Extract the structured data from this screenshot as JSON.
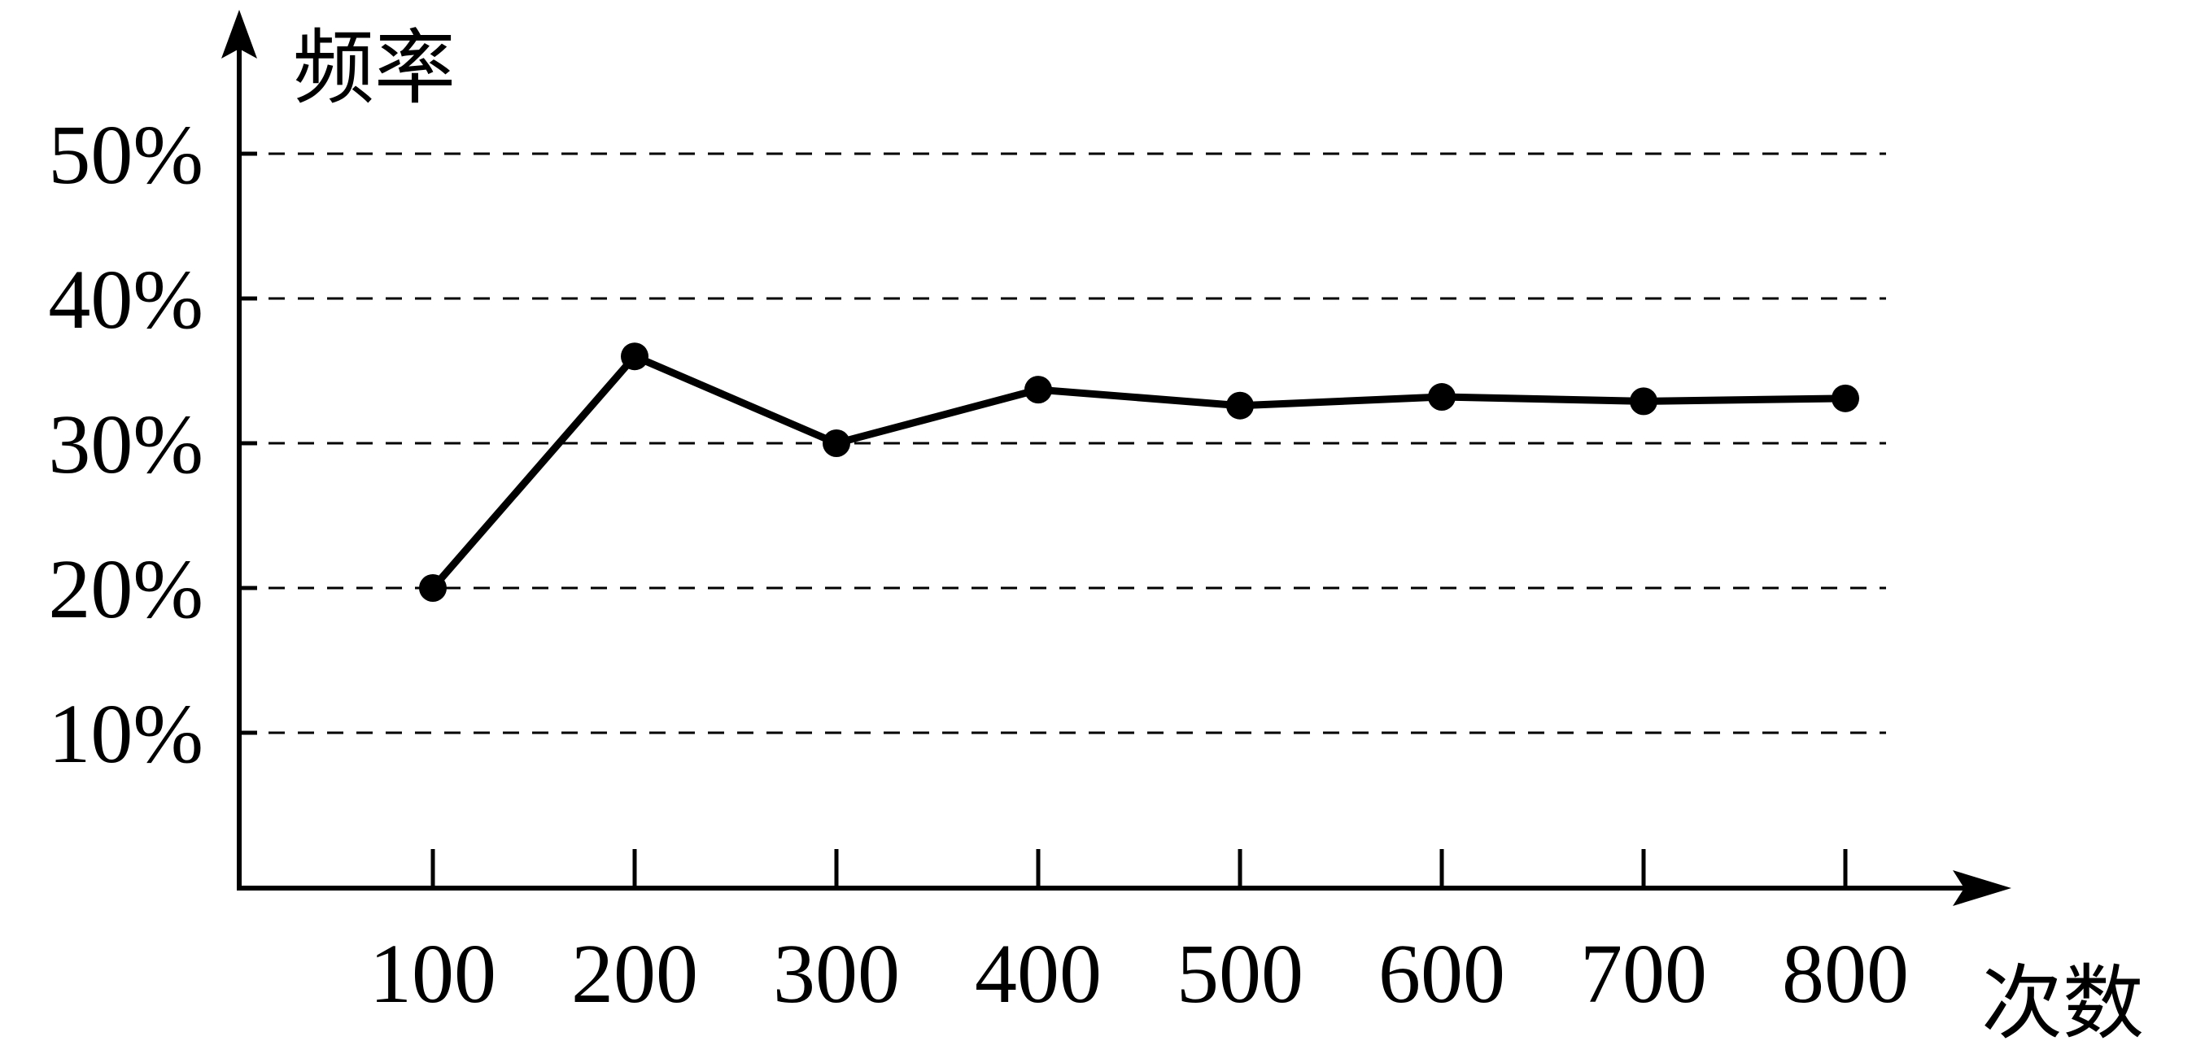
{
  "chart_data": {
    "type": "line",
    "ylabel": "频率",
    "xlabel": "次数",
    "x": [
      100,
      200,
      300,
      400,
      500,
      600,
      700,
      800
    ],
    "x_tick_labels": [
      "100",
      "200",
      "300",
      "400",
      "500",
      "600",
      "700",
      "800"
    ],
    "y_tick_labels": [
      "10%",
      "20%",
      "30%",
      "40%",
      "50%"
    ],
    "y_ticks": [
      10,
      20,
      30,
      40,
      50
    ],
    "series": [
      {
        "values": [
          20,
          36,
          30,
          33.7,
          32.6,
          33.2,
          32.9,
          33.1
        ]
      }
    ],
    "ylim": [
      0,
      50
    ],
    "grid": "horizontal dashed",
    "colors": {
      "line": "#000000",
      "grid": "#000000"
    }
  }
}
